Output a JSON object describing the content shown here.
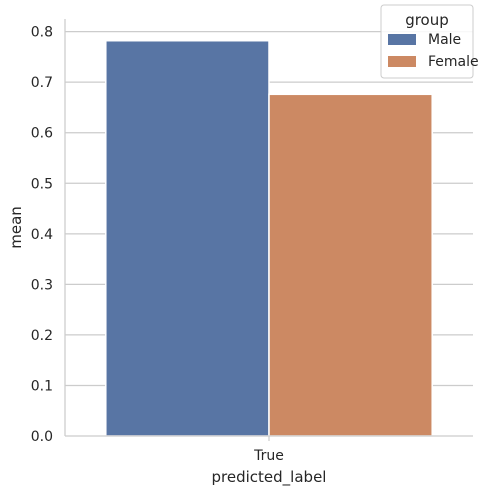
{
  "chart_data": {
    "type": "bar",
    "categories": [
      "True"
    ],
    "series": [
      {
        "name": "Male",
        "values": [
          0.782
        ]
      },
      {
        "name": "Female",
        "values": [
          0.676
        ]
      }
    ],
    "colors": [
      "#5875a4",
      "#cc8963"
    ],
    "title": "",
    "xlabel": "predicted_label",
    "ylabel": "mean",
    "ylim": [
      0,
      0.825
    ],
    "yticks": [
      0.0,
      0.1,
      0.2,
      0.3,
      0.4,
      0.5,
      0.6,
      0.7,
      0.8
    ],
    "ytick_labels": [
      "0.0",
      "0.1",
      "0.2",
      "0.3",
      "0.4",
      "0.5",
      "0.6",
      "0.7",
      "0.8"
    ],
    "grid": "horizontal",
    "legend": {
      "title": "group",
      "placement": "top-right"
    }
  }
}
